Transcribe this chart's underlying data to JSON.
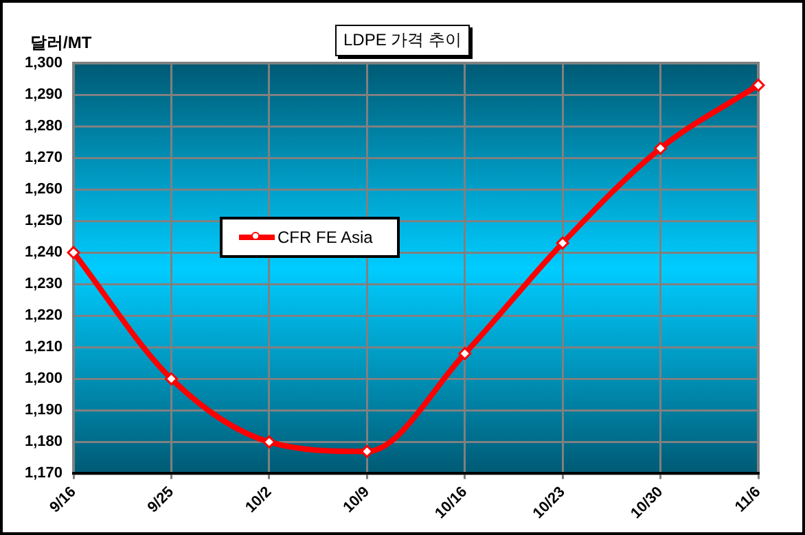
{
  "chart_data": {
    "type": "line",
    "title": "LDPE 가격 추이",
    "ylabel": "달러/MT",
    "categories": [
      "9/16",
      "9/25",
      "10/2",
      "10/9",
      "10/16",
      "10/23",
      "10/30",
      "11/6"
    ],
    "series": [
      {
        "name": "CFR FE Asia",
        "color": "#ff0000",
        "values": [
          1240,
          1200,
          1180,
          1177,
          1208,
          1243,
          1273,
          1293
        ]
      }
    ],
    "ylim": [
      1170,
      1300
    ],
    "yticks": [
      {
        "value": 1170,
        "label": "1,170"
      },
      {
        "value": 1180,
        "label": "1,180"
      },
      {
        "value": 1190,
        "label": "1,190"
      },
      {
        "value": 1200,
        "label": "1,200"
      },
      {
        "value": 1210,
        "label": "1,210"
      },
      {
        "value": 1220,
        "label": "1,220"
      },
      {
        "value": 1230,
        "label": "1,230"
      },
      {
        "value": 1240,
        "label": "1,240"
      },
      {
        "value": 1250,
        "label": "1,250"
      },
      {
        "value": 1260,
        "label": "1,260"
      },
      {
        "value": 1270,
        "label": "1,270"
      },
      {
        "value": 1280,
        "label": "1,280"
      },
      {
        "value": 1290,
        "label": "1,290"
      },
      {
        "value": 1300,
        "label": "1,300"
      }
    ],
    "grid": true,
    "legend": "center",
    "marker": "diamond",
    "line_style": "solid"
  }
}
